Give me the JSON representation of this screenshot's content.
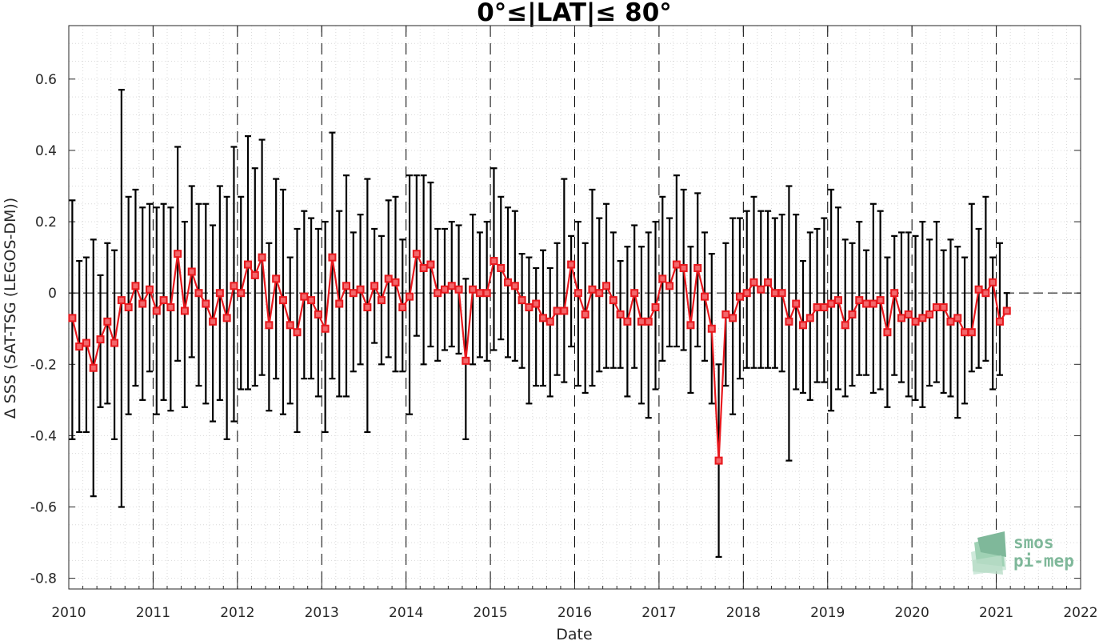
{
  "chart_data": {
    "type": "line",
    "title": "0°≤|LAT|≤ 80°",
    "xlabel": "Date",
    "ylabel": "Δ SSS (SAT-TSG (LEGOS-DM))",
    "xlim": [
      "2010-01-01",
      "2022-01-01"
    ],
    "ylim": [
      -0.83,
      0.75
    ],
    "x_ticks": [
      "2010",
      "2011",
      "2012",
      "2013",
      "2014",
      "2015",
      "2016",
      "2017",
      "2018",
      "2019",
      "2020",
      "2021",
      "2022"
    ],
    "y_ticks": [
      0.6,
      0.4,
      0.2,
      0,
      -0.2,
      -0.4,
      -0.6,
      -0.8
    ],
    "y_tick_labels": [
      "0.6",
      "0.4",
      "0.2",
      "0",
      "-0.2",
      "-0.4",
      "-0.6",
      "-0.8"
    ],
    "grid": "major and minor, dotted; dashed vertical lines at year boundaries; dashed zero line",
    "series": [
      {
        "style": "red line with square markers and black error bars (mean ± std)",
        "color": "#e8191e",
        "errorbar_color": "#000000",
        "x": [
          "2010-01",
          "2010-02",
          "2010-03",
          "2010-04",
          "2010-05",
          "2010-06",
          "2010-07",
          "2010-08",
          "2010-09",
          "2010-10",
          "2010-11",
          "2010-12",
          "2011-01",
          "2011-02",
          "2011-03",
          "2011-04",
          "2011-05",
          "2011-06",
          "2011-07",
          "2011-08",
          "2011-09",
          "2011-10",
          "2011-11",
          "2011-12",
          "2012-01",
          "2012-02",
          "2012-03",
          "2012-04",
          "2012-05",
          "2012-06",
          "2012-07",
          "2012-08",
          "2012-09",
          "2012-10",
          "2012-11",
          "2012-12",
          "2013-01",
          "2013-02",
          "2013-03",
          "2013-04",
          "2013-05",
          "2013-06",
          "2013-07",
          "2013-08",
          "2013-09",
          "2013-10",
          "2013-11",
          "2013-12",
          "2014-01",
          "2014-02",
          "2014-03",
          "2014-04",
          "2014-05",
          "2014-06",
          "2014-07",
          "2014-08",
          "2014-09",
          "2014-10",
          "2014-11",
          "2014-12",
          "2015-01",
          "2015-02",
          "2015-03",
          "2015-04",
          "2015-05",
          "2015-06",
          "2015-07",
          "2015-08",
          "2015-09",
          "2015-10",
          "2015-11",
          "2015-12",
          "2016-01",
          "2016-02",
          "2016-03",
          "2016-04",
          "2016-05",
          "2016-06",
          "2016-07",
          "2016-08",
          "2016-09",
          "2016-10",
          "2016-11",
          "2016-12",
          "2017-01",
          "2017-02",
          "2017-03",
          "2017-04",
          "2017-05",
          "2017-06",
          "2017-07",
          "2017-08",
          "2017-09",
          "2017-10",
          "2017-11",
          "2017-12",
          "2018-01",
          "2018-02",
          "2018-03",
          "2018-04",
          "2018-05",
          "2018-06",
          "2018-07",
          "2018-08",
          "2018-09",
          "2018-10",
          "2018-11",
          "2018-12",
          "2019-01",
          "2019-02",
          "2019-03",
          "2019-04",
          "2019-05",
          "2019-06",
          "2019-07",
          "2019-08",
          "2019-09",
          "2019-10",
          "2019-11",
          "2019-12",
          "2020-01",
          "2020-02",
          "2020-03",
          "2020-04",
          "2020-05",
          "2020-06",
          "2020-07",
          "2020-08",
          "2020-09",
          "2020-10",
          "2020-11",
          "2020-12",
          "2021-01",
          "2021-02"
        ],
        "y": [
          -0.07,
          -0.15,
          -0.14,
          -0.21,
          -0.13,
          -0.08,
          -0.14,
          -0.02,
          -0.04,
          0.02,
          -0.03,
          0.01,
          -0.05,
          -0.02,
          -0.04,
          0.11,
          -0.05,
          0.06,
          0.0,
          -0.03,
          -0.08,
          0.0,
          -0.07,
          0.02,
          0.0,
          0.08,
          0.05,
          0.1,
          -0.09,
          0.04,
          -0.02,
          -0.09,
          -0.11,
          -0.01,
          -0.02,
          -0.06,
          -0.1,
          0.1,
          -0.03,
          0.02,
          0.0,
          0.01,
          -0.04,
          0.02,
          -0.02,
          0.04,
          0.03,
          -0.04,
          -0.01,
          0.11,
          0.07,
          0.08,
          0.0,
          0.01,
          0.02,
          0.01,
          -0.19,
          0.01,
          0.0,
          0.0,
          0.09,
          0.07,
          0.03,
          0.02,
          -0.02,
          -0.04,
          -0.03,
          -0.07,
          -0.08,
          -0.05,
          -0.05,
          0.08,
          0.0,
          -0.06,
          0.01,
          0.0,
          0.02,
          -0.02,
          -0.06,
          -0.08,
          0.0,
          -0.08,
          -0.08,
          -0.04,
          0.04,
          0.02,
          0.08,
          0.07,
          -0.09,
          0.07,
          -0.01,
          -0.1,
          -0.47,
          -0.06,
          -0.07,
          -0.01,
          0.0,
          0.03,
          0.01,
          0.03,
          0.0,
          0.0,
          -0.08,
          -0.03,
          -0.09,
          -0.07,
          -0.04,
          -0.04,
          -0.03,
          -0.02,
          -0.09,
          -0.06,
          -0.02,
          -0.03,
          -0.03,
          -0.02,
          -0.11,
          0.0,
          -0.07,
          -0.06,
          -0.08,
          -0.07,
          -0.06,
          -0.04,
          -0.04,
          -0.08,
          -0.07,
          -0.11,
          -0.11,
          0.01,
          0.0,
          0.03,
          -0.08,
          -0.05
        ],
        "upper": [
          0.26,
          0.09,
          0.1,
          0.15,
          0.05,
          0.14,
          0.12,
          0.57,
          0.27,
          0.29,
          0.24,
          0.25,
          0.24,
          0.25,
          0.24,
          0.41,
          0.2,
          0.3,
          0.25,
          0.25,
          0.19,
          0.3,
          0.27,
          0.41,
          0.27,
          0.44,
          0.35,
          0.43,
          0.14,
          0.32,
          0.29,
          0.1,
          0.18,
          0.23,
          0.21,
          0.18,
          0.2,
          0.45,
          0.23,
          0.33,
          0.17,
          0.22,
          0.32,
          0.18,
          0.16,
          0.26,
          0.27,
          0.15,
          0.33,
          0.33,
          0.33,
          0.31,
          0.18,
          0.18,
          0.2,
          0.19,
          0.04,
          0.22,
          0.17,
          0.2,
          0.35,
          0.27,
          0.24,
          0.23,
          0.11,
          0.1,
          0.07,
          0.12,
          0.07,
          0.14,
          0.32,
          0.16,
          0.2,
          0.14,
          0.29,
          0.21,
          0.25,
          0.17,
          0.09,
          0.13,
          0.19,
          0.13,
          0.17,
          0.2,
          0.27,
          0.21,
          0.33,
          0.29,
          0.13,
          0.28,
          0.17,
          0.11,
          -0.2,
          0.14,
          0.21,
          0.21,
          0.23,
          0.27,
          0.23,
          0.23,
          0.21,
          0.22,
          0.3,
          0.22,
          0.09,
          0.17,
          0.18,
          0.21,
          0.29,
          0.24,
          0.15,
          0.14,
          0.2,
          0.12,
          0.25,
          0.23,
          0.1,
          0.16,
          0.17,
          0.17,
          0.16,
          0.2,
          0.15,
          0.2,
          0.12,
          0.15,
          0.13,
          0.1,
          0.25,
          0.18,
          0.27,
          0.1,
          0.14,
          0.0
        ],
        "lower": [
          -0.41,
          -0.39,
          -0.39,
          -0.57,
          -0.32,
          -0.31,
          -0.41,
          -0.6,
          -0.34,
          -0.26,
          -0.3,
          -0.22,
          -0.34,
          -0.3,
          -0.33,
          -0.19,
          -0.32,
          -0.18,
          -0.26,
          -0.31,
          -0.36,
          -0.3,
          -0.41,
          -0.36,
          -0.27,
          -0.27,
          -0.26,
          -0.23,
          -0.33,
          -0.24,
          -0.34,
          -0.31,
          -0.39,
          -0.24,
          -0.24,
          -0.29,
          -0.39,
          -0.24,
          -0.29,
          -0.29,
          -0.22,
          -0.2,
          -0.39,
          -0.14,
          -0.2,
          -0.18,
          -0.22,
          -0.22,
          -0.34,
          -0.12,
          -0.2,
          -0.15,
          -0.19,
          -0.16,
          -0.15,
          -0.17,
          -0.41,
          -0.2,
          -0.18,
          -0.19,
          -0.16,
          -0.13,
          -0.18,
          -0.19,
          -0.21,
          -0.31,
          -0.26,
          -0.26,
          -0.29,
          -0.23,
          -0.25,
          -0.15,
          -0.26,
          -0.28,
          -0.26,
          -0.22,
          -0.21,
          -0.21,
          -0.21,
          -0.29,
          -0.21,
          -0.31,
          -0.35,
          -0.27,
          -0.19,
          -0.15,
          -0.15,
          -0.16,
          -0.28,
          -0.15,
          -0.19,
          -0.31,
          -0.74,
          -0.26,
          -0.34,
          -0.24,
          -0.21,
          -0.21,
          -0.21,
          -0.21,
          -0.21,
          -0.22,
          -0.47,
          -0.27,
          -0.28,
          -0.3,
          -0.25,
          -0.25,
          -0.33,
          -0.27,
          -0.29,
          -0.26,
          -0.23,
          -0.23,
          -0.28,
          -0.27,
          -0.32,
          -0.23,
          -0.25,
          -0.29,
          -0.3,
          -0.32,
          -0.26,
          -0.25,
          -0.28,
          -0.29,
          -0.35,
          -0.31,
          -0.22,
          -0.21,
          -0.19,
          -0.27,
          -0.23,
          -0.05
        ]
      }
    ]
  },
  "logo": {
    "line1": "smos",
    "line2": "pi-mep",
    "color": "#7fb89a"
  }
}
